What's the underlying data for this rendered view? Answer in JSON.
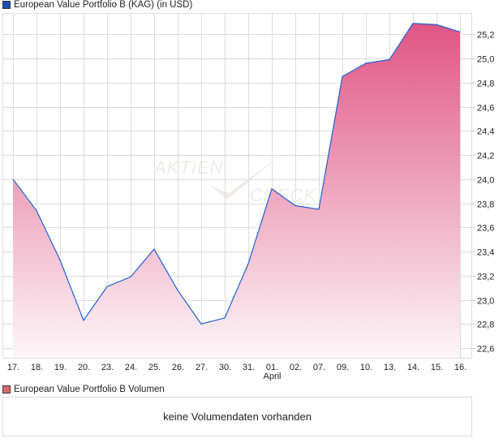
{
  "legend_price": {
    "label": "European Value Portfolio B (KAG) (in USD)",
    "color": "#1f4fb0"
  },
  "legend_volume": {
    "label": "European Value Portfolio B Volumen",
    "color": "#d96a6a"
  },
  "volume_message": "keine Volumendaten vorhanden",
  "watermark": {
    "line1": "AKTIEN",
    "line2": "CHECK"
  },
  "chart_data": {
    "type": "area",
    "categories": [
      "17.",
      "18.",
      "19.",
      "20.",
      "23.",
      "24.",
      "25.",
      "26.",
      "27.",
      "30.",
      "31.",
      "01.",
      "02.",
      "07.",
      "09.",
      "10.",
      "13.",
      "14.",
      "15.",
      "16."
    ],
    "month_label": {
      "category": "01.",
      "text": "April"
    },
    "series": [
      {
        "values": [
          24.0,
          23.74,
          23.33,
          22.83,
          23.11,
          23.19,
          23.42,
          23.08,
          22.8,
          22.85,
          23.3,
          23.92,
          23.78,
          23.75,
          24.85,
          24.96,
          24.99,
          25.29,
          25.28,
          25.22
        ]
      }
    ],
    "yticks": [
      "22,6",
      "22,8",
      "23,0",
      "23,2",
      "23,4",
      "23,6",
      "23,8",
      "24,0",
      "24,2",
      "24,4",
      "24,6",
      "24,8",
      "25,0",
      "25,2"
    ],
    "ylim": [
      22.52,
      25.37
    ],
    "grid": true,
    "y_axis_side": "right",
    "line_color": "#1f5fd0",
    "fill_top_color": "#e05585",
    "fill_bottom_color": "#fdf6f9"
  }
}
